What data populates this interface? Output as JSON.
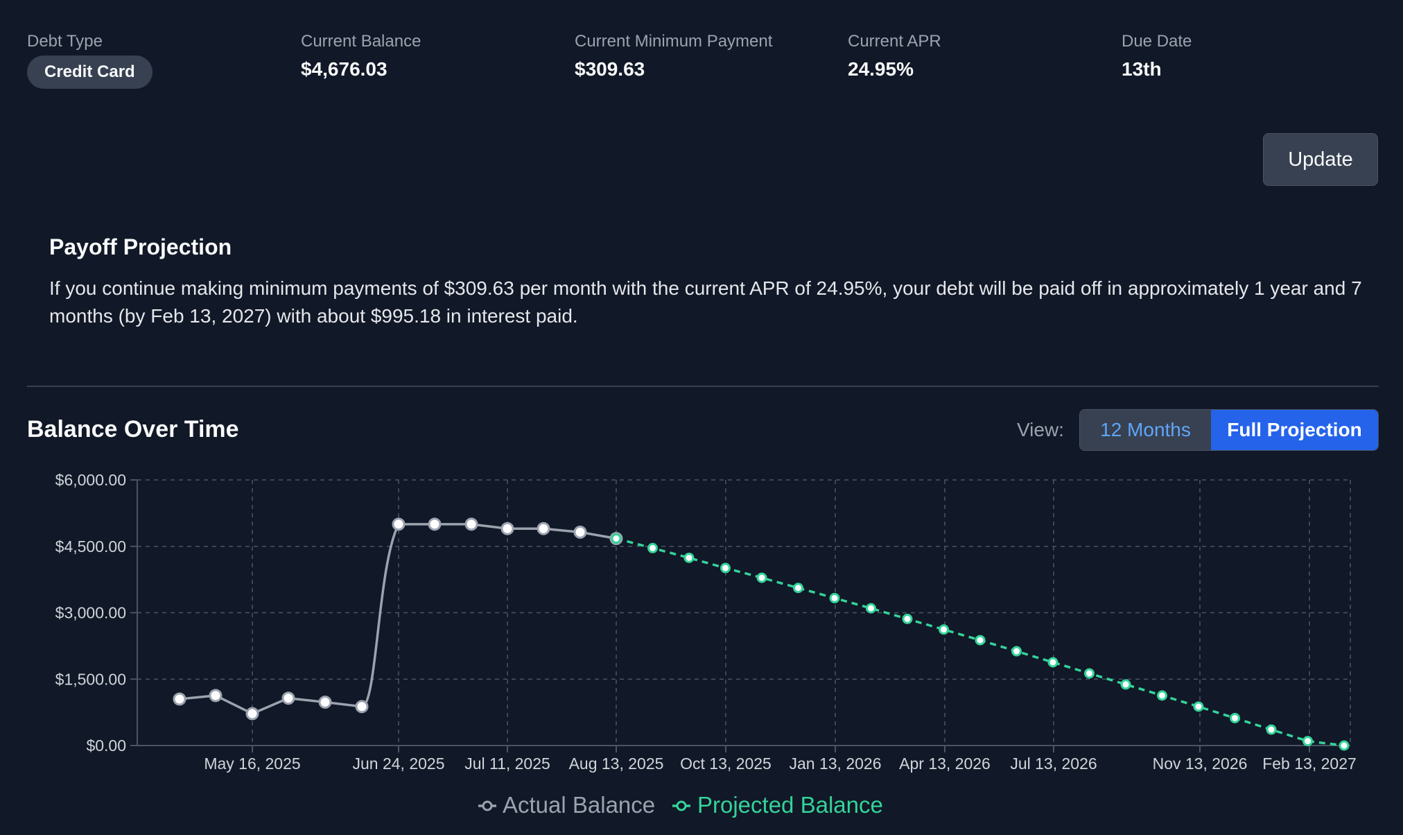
{
  "summary": {
    "debt_type": {
      "label": "Debt Type",
      "value": "Credit Card"
    },
    "current_balance": {
      "label": "Current Balance",
      "value": "$4,676.03"
    },
    "min_payment": {
      "label": "Current Minimum Payment",
      "value": "$309.63"
    },
    "apr": {
      "label": "Current APR",
      "value": "24.95%"
    },
    "due_date": {
      "label": "Due Date",
      "value": "13th"
    }
  },
  "update_button": "Update",
  "projection": {
    "title": "Payoff Projection",
    "text": "If you continue making minimum payments of $309.63 per month with the current APR of 24.95%, your debt will be paid off in approximately 1 year and 7 months (by Feb 13, 2027) with about $995.18 in interest paid."
  },
  "chart_section": {
    "title": "Balance Over Time",
    "view_label": "View:",
    "view_options": [
      "12 Months",
      "Full Projection"
    ],
    "selected_view": "Full Projection"
  },
  "colors": {
    "background": "#111827",
    "actual": "#9ca3af",
    "projected": "#34d399",
    "accent": "#2563eb",
    "grid": "#4b5563"
  },
  "chart_data": {
    "type": "line",
    "title": "",
    "xlabel": "",
    "ylabel": "",
    "ylim": [
      0,
      6000
    ],
    "y_ticks": [
      "$0.00",
      "$1,500.00",
      "$3,000.00",
      "$4,500.00",
      "$6,000.00"
    ],
    "x_ticks": [
      "May 16, 2025",
      "Jun 24, 2025",
      "Jul 11, 2025",
      "Aug 13, 2025",
      "Oct 13, 2025",
      "Jan 13, 2026",
      "Apr 13, 2026",
      "Jul 13, 2026",
      "Nov 13, 2026",
      "Feb 13, 2027"
    ],
    "grid": true,
    "legend_position": "bottom",
    "series": [
      {
        "name": "Actual Balance",
        "values": [
          1050,
          1130,
          720,
          1070,
          980,
          880,
          5000,
          5000,
          5000,
          4900,
          4900,
          4820,
          4676.03
        ]
      },
      {
        "name": "Projected Balance",
        "values": [
          4676.03,
          4460,
          4240,
          4010,
          3790,
          3560,
          3330,
          3100,
          2860,
          2620,
          2380,
          2130,
          1880,
          1630,
          1380,
          1130,
          880,
          620,
          360,
          100,
          0
        ]
      }
    ]
  }
}
